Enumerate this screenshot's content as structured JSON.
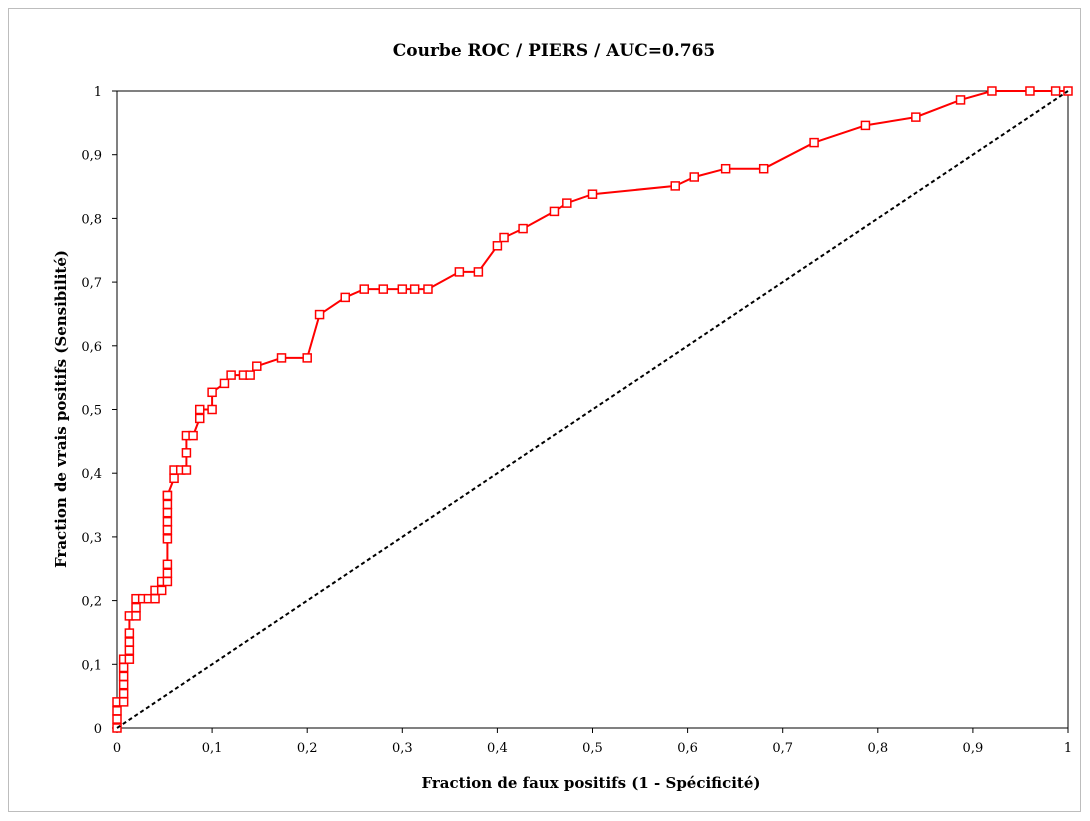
{
  "chart_data": {
    "type": "line",
    "title": "Courbe ROC / PIERS / AUC=0.765",
    "xlabel": "Fraction de faux positifs (1 - Spécificité)",
    "ylabel": "Fraction de vrais positifs (Sensibilité)",
    "xlim": [
      0,
      1
    ],
    "ylim": [
      0,
      1
    ],
    "x_ticks": [
      "0",
      "0,1",
      "0,2",
      "0,3",
      "0,4",
      "0,5",
      "0,6",
      "0,7",
      "0,8",
      "0,9",
      "1"
    ],
    "y_ticks": [
      "0",
      "0,1",
      "0,2",
      "0,3",
      "0,4",
      "0,5",
      "0,6",
      "0,7",
      "0,8",
      "0,9",
      "1"
    ],
    "grid": false,
    "series": [
      {
        "color": "#ff0000",
        "marker": "square-open",
        "x": [
          0,
          0,
          0,
          0,
          0.007,
          0.007,
          0.007,
          0.007,
          0.007,
          0.007,
          0.013,
          0.013,
          0.013,
          0.013,
          0.013,
          0.02,
          0.02,
          0.02,
          0.027,
          0.033,
          0.04,
          0.04,
          0.047,
          0.047,
          0.053,
          0.053,
          0.053,
          0.053,
          0.053,
          0.053,
          0.053,
          0.053,
          0.053,
          0.053,
          0.06,
          0.06,
          0.067,
          0.073,
          0.073,
          0.073,
          0.08,
          0.087,
          0.087,
          0.1,
          0.1,
          0.113,
          0.12,
          0.133,
          0.14,
          0.147,
          0.173,
          0.2,
          0.213,
          0.24,
          0.26,
          0.28,
          0.3,
          0.313,
          0.327,
          0.36,
          0.38,
          0.4,
          0.407,
          0.427,
          0.46,
          0.473,
          0.5,
          0.587,
          0.607,
          0.64,
          0.68,
          0.733,
          0.787,
          0.84,
          0.887,
          0.92,
          0.96,
          0.987,
          1.0
        ],
        "y": [
          0,
          0.014,
          0.027,
          0.041,
          0.041,
          0.054,
          0.068,
          0.081,
          0.095,
          0.108,
          0.108,
          0.122,
          0.135,
          0.149,
          0.176,
          0.176,
          0.189,
          0.203,
          0.203,
          0.203,
          0.216,
          0.203,
          0.216,
          0.23,
          0.23,
          0.243,
          0.257,
          0.297,
          0.311,
          0.324,
          0.338,
          0.351,
          0.365,
          0.365,
          0.392,
          0.405,
          0.405,
          0.405,
          0.432,
          0.459,
          0.459,
          0.486,
          0.5,
          0.5,
          0.527,
          0.541,
          0.554,
          0.554,
          0.554,
          0.568,
          0.581,
          0.581,
          0.649,
          0.676,
          0.689,
          0.689,
          0.689,
          0.689,
          0.689,
          0.716,
          0.716,
          0.757,
          0.77,
          0.784,
          0.811,
          0.824,
          0.838,
          0.851,
          0.865,
          0.878,
          0.878,
          0.919,
          0.946,
          0.959,
          0.986,
          1.0,
          1.0,
          1.0,
          1.0
        ]
      },
      {
        "color": "#000000",
        "style": "dashed",
        "x": [
          0,
          1
        ],
        "y": [
          0,
          1
        ]
      }
    ]
  }
}
